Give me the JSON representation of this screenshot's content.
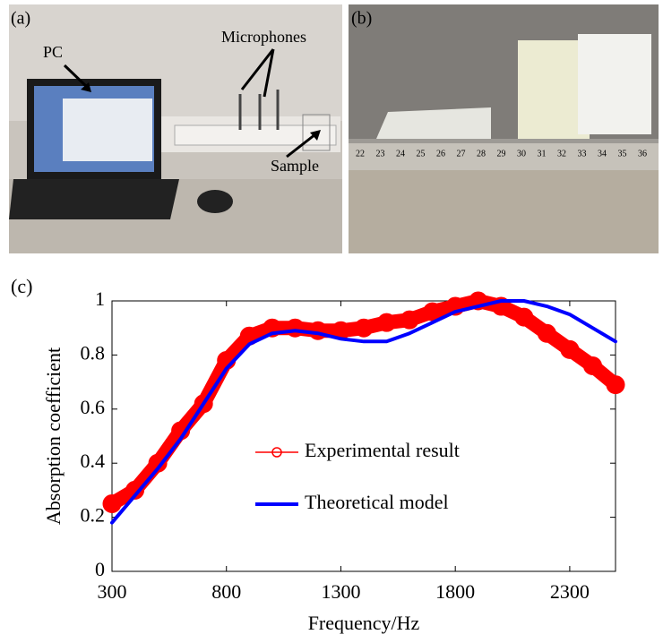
{
  "panels": {
    "a": {
      "label": "(a)",
      "annotations": [
        "PC",
        "Microphones",
        "Sample"
      ]
    },
    "b": {
      "label": "(b)",
      "ruler_labels": [
        22,
        23,
        24,
        25,
        26,
        27,
        28,
        29,
        30,
        31,
        32,
        33,
        34,
        35,
        36
      ]
    },
    "c": {
      "label": "(c)"
    }
  },
  "chart_data": {
    "type": "line",
    "x_label": "Frequency/Hz",
    "y_label": "Absorption coefficient",
    "x": [
      300,
      400,
      500,
      600,
      700,
      800,
      900,
      1000,
      1100,
      1200,
      1300,
      1400,
      1500,
      1600,
      1700,
      1800,
      1900,
      2000,
      2100,
      2200,
      2300,
      2400,
      2500
    ],
    "series": [
      {
        "name": "Experimental result",
        "color": "#ff0000",
        "marker": "circle",
        "values": [
          0.25,
          0.3,
          0.4,
          0.52,
          0.62,
          0.78,
          0.87,
          0.9,
          0.9,
          0.89,
          0.89,
          0.9,
          0.92,
          0.93,
          0.96,
          0.98,
          1.0,
          0.98,
          0.94,
          0.88,
          0.82,
          0.76,
          0.69
        ]
      },
      {
        "name": "Theoretical model",
        "color": "#0000ff",
        "marker": "none",
        "values": [
          0.18,
          0.28,
          0.38,
          0.49,
          0.62,
          0.75,
          0.84,
          0.88,
          0.89,
          0.88,
          0.86,
          0.85,
          0.85,
          0.88,
          0.92,
          0.96,
          0.98,
          1.0,
          1.0,
          0.98,
          0.95,
          0.9,
          0.85
        ]
      }
    ],
    "xlim": [
      300,
      2500
    ],
    "ylim": [
      0,
      1
    ],
    "xticks": [
      300,
      800,
      1300,
      1800,
      2300
    ],
    "yticks": [
      0,
      0.2,
      0.4,
      0.6,
      0.8,
      1
    ],
    "legend": "center",
    "grid": false
  }
}
